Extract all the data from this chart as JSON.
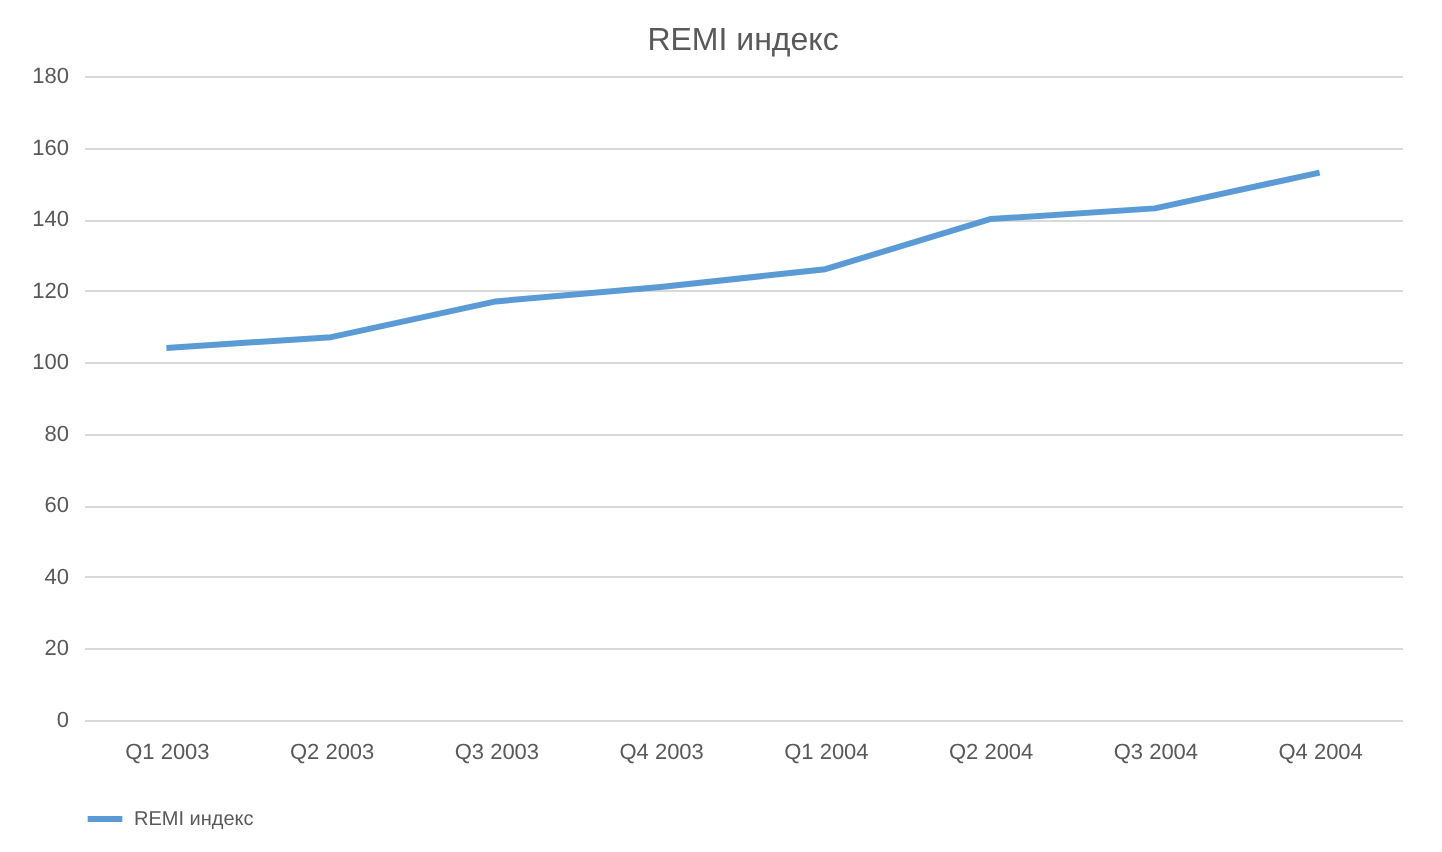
{
  "chart_data": {
    "type": "line",
    "title": "REMI индекс",
    "categories": [
      "Q1 2003",
      "Q2 2003",
      "Q3 2003",
      "Q4 2003",
      "Q1 2004",
      "Q2 2004",
      "Q3 2004",
      "Q4 2004"
    ],
    "series": [
      {
        "name": "REMI индекс",
        "color": "#5b9bd5",
        "values": [
          104,
          107,
          117,
          121,
          126,
          140,
          143,
          153
        ]
      }
    ],
    "ylim": [
      0,
      180
    ],
    "yticks": [
      0,
      20,
      40,
      60,
      80,
      100,
      120,
      140,
      160,
      180
    ],
    "grid": "y",
    "legend": "bottom",
    "marker": "none",
    "line_style": "solid"
  }
}
